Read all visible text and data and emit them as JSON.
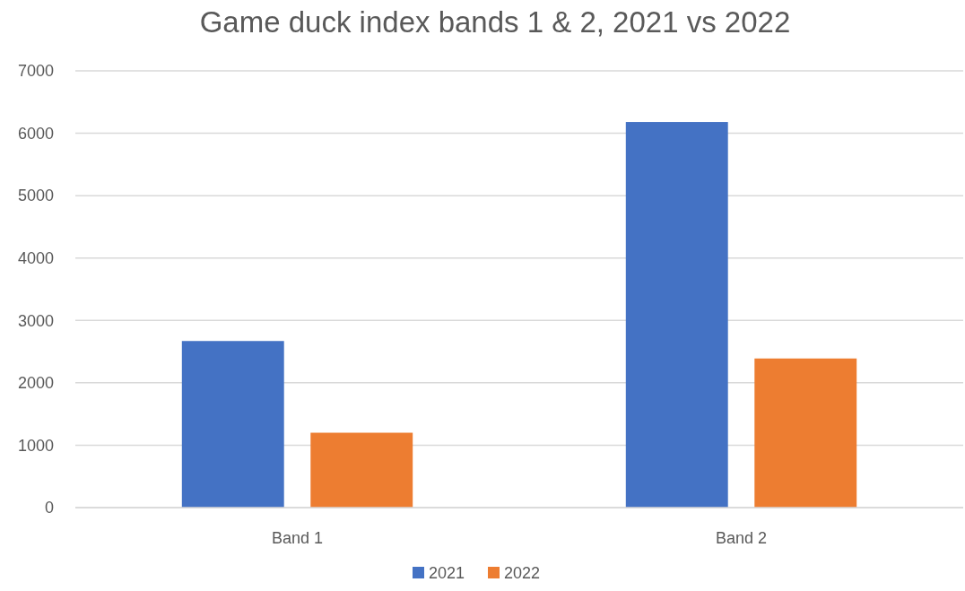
{
  "chart_data": {
    "type": "bar",
    "title": "Game duck index bands 1 & 2, 2021 vs 2022",
    "categories": [
      "Band 1",
      "Band 2"
    ],
    "series": [
      {
        "name": "2021",
        "color": "#4472c4",
        "values": [
          2670,
          6180
        ]
      },
      {
        "name": "2022",
        "color": "#ed7d31",
        "values": [
          1200,
          2390
        ]
      }
    ],
    "ylim": [
      0,
      7000
    ],
    "yticks": [
      0,
      1000,
      2000,
      3000,
      4000,
      5000,
      6000,
      7000
    ],
    "grid": "y",
    "legend": "bottom"
  }
}
